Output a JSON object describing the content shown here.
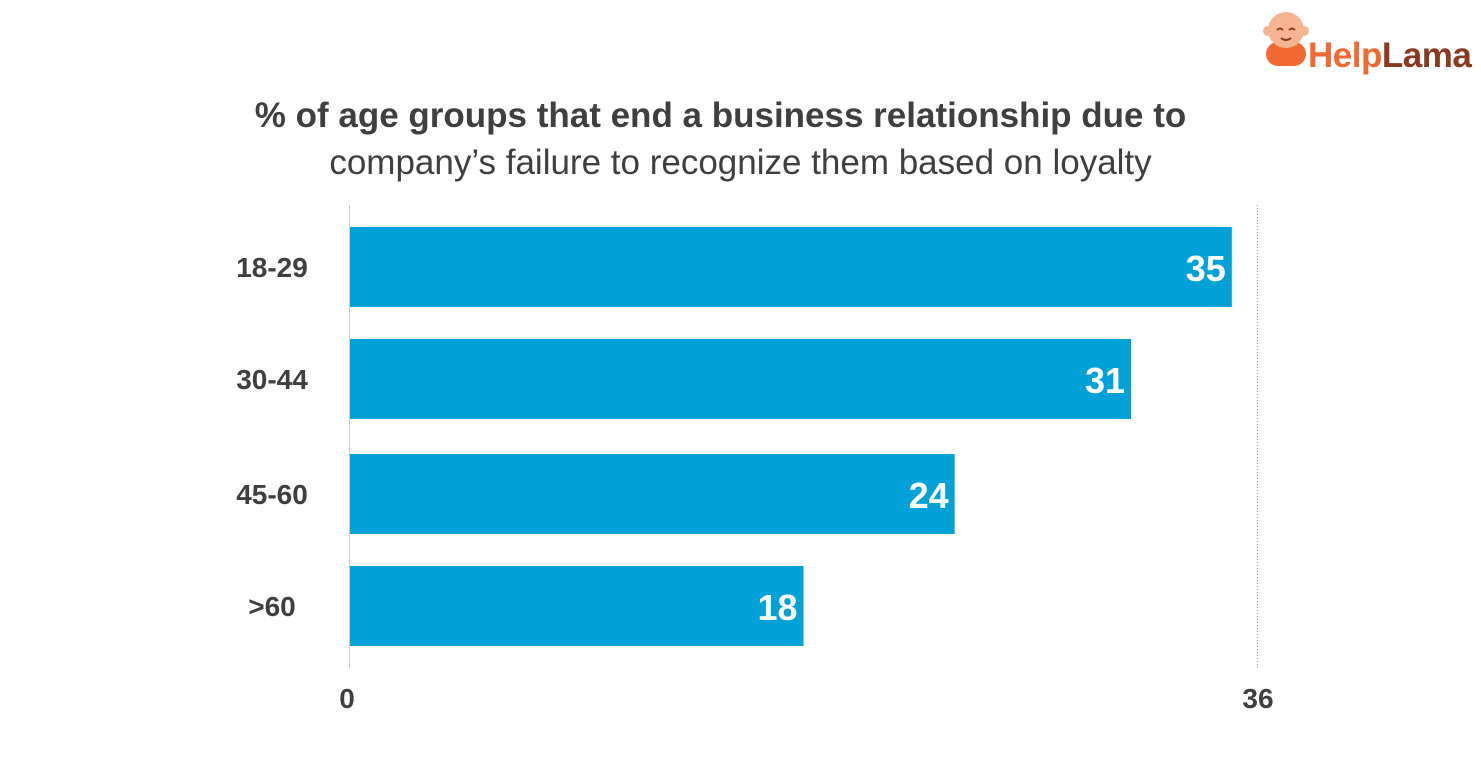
{
  "logo": {
    "brand_part1": "Help",
    "brand_part2": "Lama",
    "brand_color_1": "#f26a32",
    "brand_color_2": "#8a3b1f",
    "mascot_icon": "monk-mascot-icon"
  },
  "chart_data": {
    "type": "bar",
    "orientation": "horizontal",
    "title_line1": "% of age groups that end a business relationship due to",
    "title_line2": "company’s failure to recognize them based on loyalty",
    "categories": [
      "18-29",
      "30-44",
      "45-60",
      ">60"
    ],
    "values": [
      35,
      31,
      24,
      18
    ],
    "data_labels": [
      "35",
      "31",
      "24",
      "18"
    ],
    "xlim": [
      0,
      36
    ],
    "x_tick_labels": [
      "0",
      "36"
    ],
    "xlabel": "",
    "ylabel": "",
    "grid": false,
    "legend": "none",
    "bar_color": "#02a2d9"
  }
}
